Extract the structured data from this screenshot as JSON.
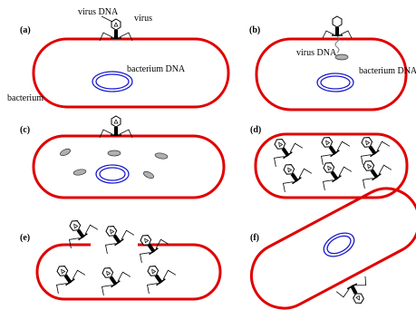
{
  "panels": [
    {
      "label": "(a)",
      "annotations": [
        "virus DNA",
        "virus",
        "bacterium DNA",
        "bacterium"
      ]
    },
    {
      "label": "(b)",
      "annotations": [
        "virus DNA",
        "bacterium DNA"
      ]
    },
    {
      "label": "(c)"
    },
    {
      "label": "(d)"
    },
    {
      "label": "(e)"
    },
    {
      "label": "(f)"
    }
  ]
}
